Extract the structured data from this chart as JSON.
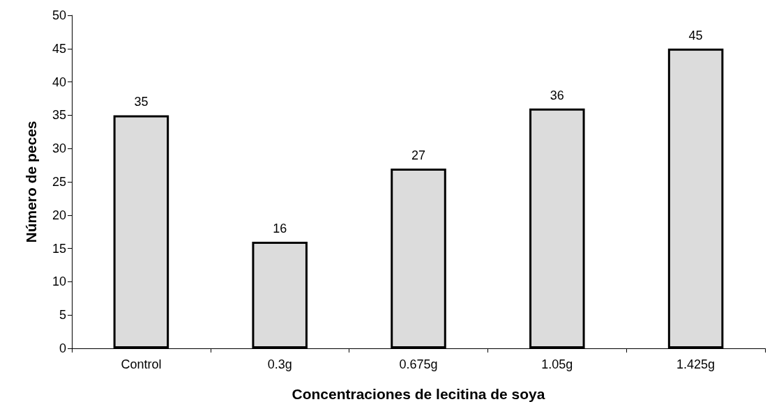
{
  "chart_data": {
    "type": "bar",
    "xlabel": "Concentraciones de lecitina de soya",
    "ylabel": "Número de peces",
    "categories": [
      "Control",
      "0.3g",
      "0.675g",
      "1.05g",
      "1.425g"
    ],
    "values": [
      35,
      16,
      27,
      36,
      45
    ],
    "color": "#dcdcdc",
    "ylim": [
      0,
      50
    ],
    "yticks": [
      0,
      5,
      10,
      15,
      20,
      25,
      30,
      35,
      40,
      45,
      50
    ],
    "grid": false,
    "data_labels": true
  }
}
